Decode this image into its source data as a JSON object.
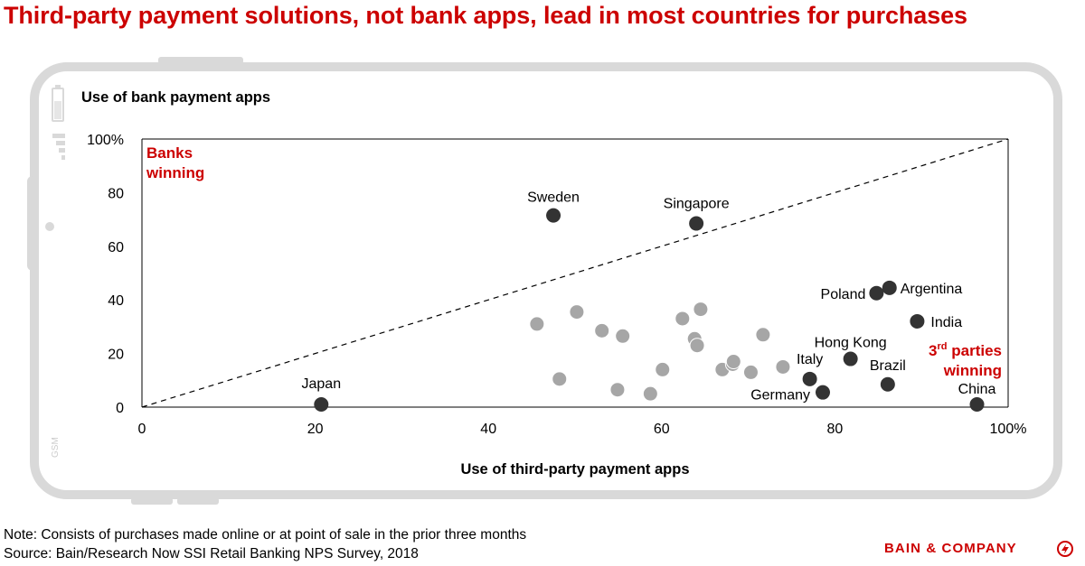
{
  "title": "Third-party payment solutions, not bank apps, lead in most countries for purchases",
  "note": "Note: Consists of purchases made online or at point of sale in the prior three months",
  "source": "Source: Bain/Research Now SSI Retail Banking NPS Survey, 2018",
  "brand": "BAIN & COMPANY",
  "phone_label": "GSM",
  "colors": {
    "title": "#cc0000",
    "labeled_point": "#333333",
    "other_point": "#a6a6a6",
    "frame": "#d9d9d9",
    "accent": "#cc0000"
  },
  "chart_data": {
    "type": "scatter",
    "ylabel": "Use of bank payment apps",
    "xlabel": "Use of third-party payment apps",
    "xlim": [
      0,
      100
    ],
    "ylim": [
      0,
      100
    ],
    "x_ticks": [
      "0",
      "20",
      "40",
      "60",
      "80",
      "100%"
    ],
    "y_ticks": [
      "0",
      "20",
      "40",
      "60",
      "80",
      "100%"
    ],
    "diagonal": "dashed line from (0,0) to (100,100)",
    "annotation_top_left": [
      "Banks",
      "winning"
    ],
    "annotation_bottom_right": {
      "line1_num": "3",
      "line1_sup": "rd",
      "line1_rest": " parties",
      "line2": "winning"
    },
    "labeled_series": [
      {
        "label": "Japan",
        "x": 20.7,
        "y": 1
      },
      {
        "label": "Sweden",
        "x": 47.5,
        "y": 71.5
      },
      {
        "label": "Singapore",
        "x": 64,
        "y": 68.5
      },
      {
        "label": "Poland",
        "x": 84.8,
        "y": 42.5
      },
      {
        "label": "Argentina",
        "x": 86.3,
        "y": 44.5
      },
      {
        "label": "India",
        "x": 89.5,
        "y": 32
      },
      {
        "label": "Hong Kong",
        "x": 81.8,
        "y": 18
      },
      {
        "label": "Italy",
        "x": 77.1,
        "y": 10.5
      },
      {
        "label": "Germany",
        "x": 78.6,
        "y": 5.5
      },
      {
        "label": "Brazil",
        "x": 86.1,
        "y": 8.5
      },
      {
        "label": "China",
        "x": 96.4,
        "y": 1
      }
    ],
    "unlabeled_series": [
      {
        "x": 45.6,
        "y": 31
      },
      {
        "x": 48.2,
        "y": 10.5
      },
      {
        "x": 50.2,
        "y": 35.5
      },
      {
        "x": 53.1,
        "y": 28.5
      },
      {
        "x": 54.9,
        "y": 6.5
      },
      {
        "x": 55.5,
        "y": 26.5
      },
      {
        "x": 58.7,
        "y": 5
      },
      {
        "x": 60.1,
        "y": 14
      },
      {
        "x": 62.4,
        "y": 33
      },
      {
        "x": 63.8,
        "y": 25.5
      },
      {
        "x": 64.1,
        "y": 23
      },
      {
        "x": 64.5,
        "y": 36.5
      },
      {
        "x": 67,
        "y": 14
      },
      {
        "x": 68.2,
        "y": 16
      },
      {
        "x": 68.3,
        "y": 17
      },
      {
        "x": 70.3,
        "y": 13
      },
      {
        "x": 71.7,
        "y": 27
      },
      {
        "x": 74,
        "y": 15
      }
    ]
  }
}
